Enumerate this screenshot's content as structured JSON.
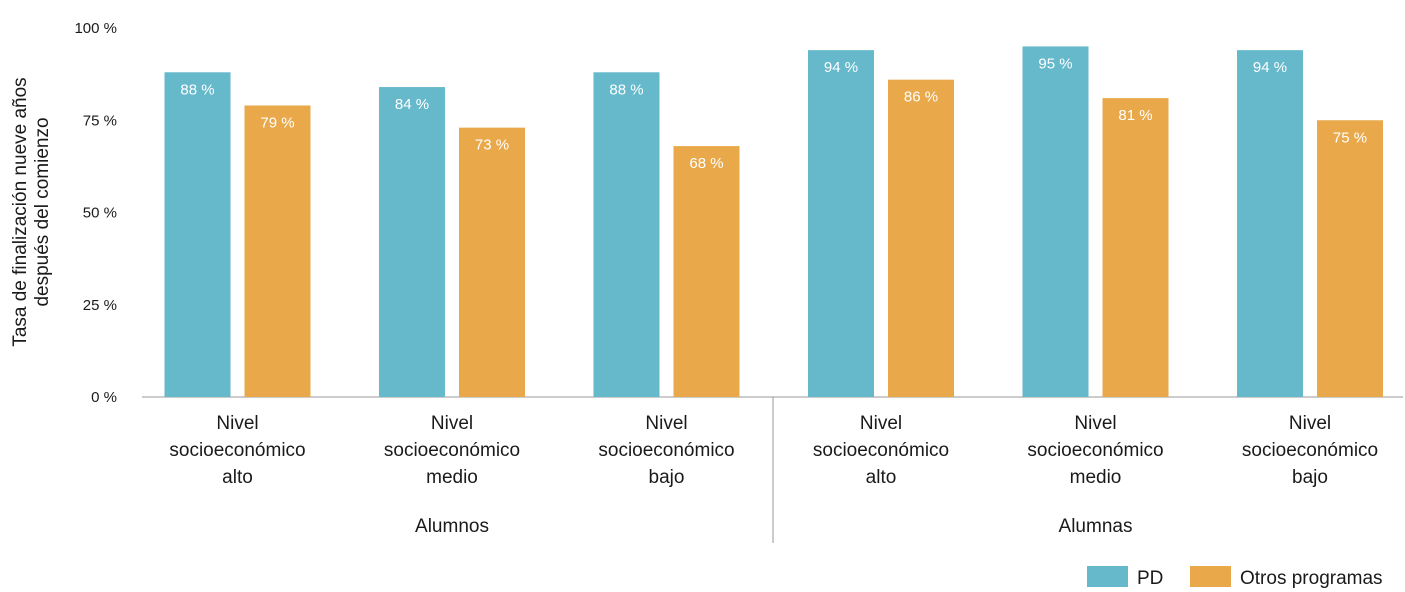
{
  "chart_data": {
    "type": "bar",
    "ylabel": [
      "Tasa de finalización nueve años",
      "después del comienzo"
    ],
    "ylim": [
      0,
      100
    ],
    "y_ticks": [
      "0 %",
      "25 %",
      "50 %",
      "75 %",
      "100 %"
    ],
    "y_tick_values": [
      0,
      25,
      50,
      75,
      100
    ],
    "groups": [
      {
        "name": "Alumnos",
        "categories": [
          [
            "Nivel",
            "socioeconómico",
            "alto"
          ],
          [
            "Nivel",
            "socioeconómico",
            "medio"
          ],
          [
            "Nivel",
            "socioeconómico",
            "bajo"
          ]
        ]
      },
      {
        "name": "Alumnas",
        "categories": [
          [
            "Nivel",
            "socioeconómico",
            "alto"
          ],
          [
            "Nivel",
            "socioeconómico",
            "medio"
          ],
          [
            "Nivel",
            "socioeconómico",
            "bajo"
          ]
        ]
      }
    ],
    "series": [
      {
        "name": "PD",
        "color": "#66b9cb",
        "values": [
          88,
          84,
          88,
          94,
          95,
          94
        ],
        "labels": [
          "88 %",
          "84 %",
          "88 %",
          "94 %",
          "95 %",
          "94 %"
        ]
      },
      {
        "name": "Otros programas",
        "color": "#e9a94a",
        "values": [
          79,
          73,
          68,
          86,
          81,
          75
        ],
        "labels": [
          "79 %",
          "73 %",
          "68 %",
          "86 %",
          "81 %",
          "75 %"
        ]
      }
    ],
    "legend": "bottom-right",
    "grid": false
  }
}
